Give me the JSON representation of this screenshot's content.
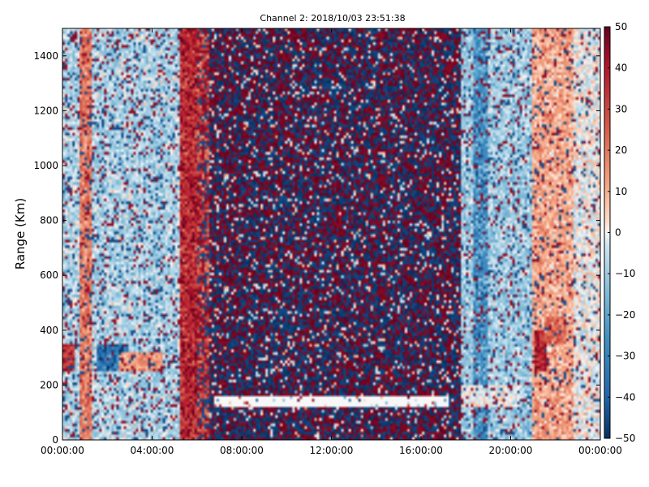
{
  "chart_data": {
    "type": "heatmap",
    "title": "Channel 2: 2018/10/03 23:51:38",
    "xlabel": "",
    "ylabel": "Range (Km)",
    "x_ticks": [
      "00:00:00",
      "04:00:00",
      "08:00:00",
      "12:00:00",
      "16:00:00",
      "20:00:00",
      "00:00:00"
    ],
    "x_range_hours": [
      0,
      24
    ],
    "y_ticks": [
      0,
      200,
      400,
      600,
      800,
      1000,
      1200,
      1400
    ],
    "ylim": [
      0,
      1500
    ],
    "colorbar": {
      "ticks": [
        50,
        40,
        30,
        20,
        10,
        0,
        -10,
        -20,
        -30,
        -40,
        -50
      ],
      "range": [
        -50,
        50
      ],
      "colormap": "RdBu_r",
      "colors": {
        "low": "#053061",
        "mid": "#f7f7f7",
        "high": "#67001f"
      }
    },
    "features": [
      {
        "name": "noise-region",
        "x_hours": [
          6.5,
          17.8
        ],
        "y_km": [
          0,
          1500
        ],
        "value": "random ±50"
      },
      {
        "name": "red-band",
        "x_hours": [
          5.2,
          6.0
        ],
        "y_km": [
          0,
          1500
        ],
        "value": 40
      },
      {
        "name": "white-stripe",
        "x_hours": [
          6.8,
          17.2
        ],
        "y_km": [
          120,
          160
        ],
        "value": 0
      },
      {
        "name": "left-pale-blue",
        "x_hours": [
          0,
          5.0
        ],
        "y_km": [
          0,
          1500
        ],
        "value": -10
      },
      {
        "name": "right-pale-blue",
        "x_hours": [
          18.3,
          21.0
        ],
        "y_km": [
          0,
          1500
        ],
        "value": -10
      },
      {
        "name": "right-pale-red",
        "x_hours": [
          21.0,
          24.0
        ],
        "y_km": [
          0,
          1500
        ],
        "value": 15
      },
      {
        "name": "left-red-streak",
        "x_hours": [
          0.8,
          1.2
        ],
        "y_km": [
          0,
          1500
        ],
        "value": 20
      }
    ]
  }
}
